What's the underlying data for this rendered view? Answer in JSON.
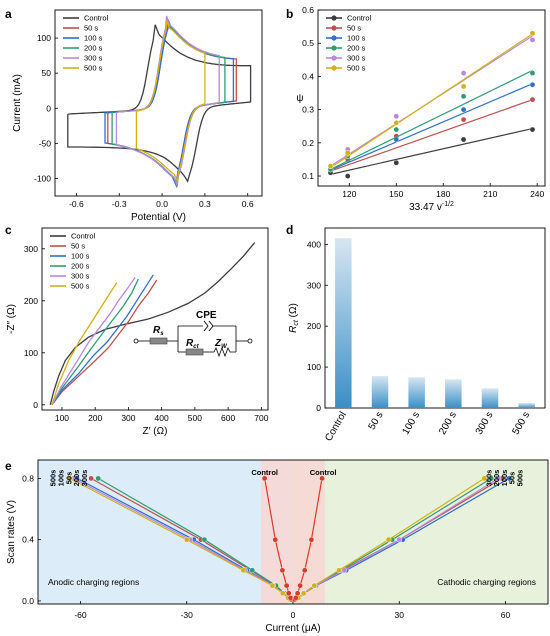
{
  "series_names": [
    "Control",
    "50 s",
    "100 s",
    "200 s",
    "300 s",
    "500 s"
  ],
  "series_short": [
    "Control",
    "50s",
    "100s",
    "200s",
    "300s",
    "500s"
  ],
  "colors": [
    "#3d3d3d",
    "#c0504d",
    "#2e6fcf",
    "#2e9e72",
    "#b987e0",
    "#d4b017"
  ],
  "chart_data": [
    {
      "panel": "a",
      "type": "line",
      "xlabel": "Potential (V)",
      "ylabel": "Current (mA)",
      "xlim": [
        -0.75,
        0.7
      ],
      "ylim": [
        -125,
        140
      ],
      "xticks": [
        -0.6,
        -0.3,
        0.0,
        0.3,
        0.6
      ],
      "xtick_labels": [
        "-0.6",
        "-0.3",
        "0.0",
        "0.3",
        "0.6"
      ],
      "yticks": [
        -100,
        -50,
        0,
        50,
        100
      ],
      "series": [
        {
          "name": "Control",
          "ox": -0.05,
          "rx": 0.19,
          "oy": 120,
          "ry": -108,
          "lo": -0.66,
          "hi": 0.62,
          "ylo": -55,
          "yhi": 45
        },
        {
          "name": "50 s",
          "ox": 0.04,
          "rx": 0.1,
          "oy": 127,
          "ry": -110,
          "lo": -0.38,
          "hi": 0.52,
          "ylo": -42,
          "yhi": 52
        },
        {
          "name": "100 s",
          "ox": 0.04,
          "rx": 0.1,
          "oy": 128,
          "ry": -110,
          "lo": -0.4,
          "hi": 0.5,
          "ylo": -44,
          "yhi": 50
        },
        {
          "name": "200 s",
          "ox": 0.03,
          "rx": 0.11,
          "oy": 130,
          "ry": -111,
          "lo": -0.35,
          "hi": 0.44,
          "ylo": -40,
          "yhi": 44
        },
        {
          "name": "300 s",
          "ox": 0.03,
          "rx": 0.11,
          "oy": 133,
          "ry": -112,
          "lo": -0.32,
          "hi": 0.4,
          "ylo": -37,
          "yhi": 40
        },
        {
          "name": "500 s",
          "ox": 0.03,
          "rx": 0.11,
          "oy": 128,
          "ry": -106,
          "lo": -0.18,
          "hi": 0.3,
          "ylo": -28,
          "yhi": 33
        }
      ]
    },
    {
      "panel": "b",
      "type": "scatter",
      "xlabel": "33.47 v",
      "xlabel_sup": "-1/2",
      "ylabel": "ψ",
      "xlim": [
        100,
        245
      ],
      "ylim": [
        0.07,
        0.6
      ],
      "xticks": [
        120,
        150,
        180,
        210,
        240
      ],
      "yticks": [
        0.1,
        0.2,
        0.3,
        0.4,
        0.5,
        0.6
      ],
      "x": [
        108,
        119,
        150,
        193,
        237
      ],
      "series": [
        {
          "name": "Control",
          "values": [
            0.11,
            0.1,
            0.14,
            0.21,
            0.24
          ],
          "fit": [
            0.105,
            0.243
          ]
        },
        {
          "name": "50 s",
          "values": [
            0.12,
            0.15,
            0.22,
            0.27,
            0.33
          ],
          "fit": [
            0.115,
            0.33
          ]
        },
        {
          "name": "100 s",
          "values": [
            0.12,
            0.16,
            0.21,
            0.3,
            0.375
          ],
          "fit": [
            0.118,
            0.378
          ]
        },
        {
          "name": "200 s",
          "values": [
            0.12,
            0.16,
            0.24,
            0.34,
            0.41
          ],
          "fit": [
            0.12,
            0.418
          ]
        },
        {
          "name": "300 s",
          "values": [
            0.13,
            0.18,
            0.28,
            0.41,
            0.51
          ],
          "fit": [
            0.13,
            0.522
          ]
        },
        {
          "name": "500 s",
          "values": [
            0.13,
            0.17,
            0.26,
            0.37,
            0.53
          ],
          "fit": [
            0.125,
            0.528
          ]
        }
      ]
    },
    {
      "panel": "c",
      "type": "line",
      "xlabel": "Z′ (Ω)",
      "ylabel": "-Z″ (Ω)",
      "xlim": [
        40,
        720
      ],
      "ylim": [
        -10,
        340
      ],
      "xticks": [
        100,
        200,
        300,
        400,
        500,
        600,
        700
      ],
      "yticks": [
        0,
        100,
        200,
        300
      ],
      "series": [
        {
          "name": "Control",
          "x": [
            65,
            75,
            90,
            110,
            140,
            180,
            230,
            290,
            360,
            420,
            480,
            530,
            570,
            610,
            645,
            680
          ],
          "y": [
            0,
            25,
            55,
            85,
            110,
            130,
            145,
            155,
            165,
            178,
            195,
            215,
            237,
            262,
            285,
            312
          ]
        },
        {
          "name": "50 s",
          "x": [
            70,
            100,
            150,
            200,
            240,
            270,
            300,
            330,
            360,
            385
          ],
          "y": [
            0,
            25,
            55,
            85,
            110,
            135,
            160,
            190,
            215,
            240
          ]
        },
        {
          "name": "100 s",
          "x": [
            70,
            100,
            150,
            195,
            235,
            265,
            295,
            325,
            350,
            375
          ],
          "y": [
            0,
            28,
            60,
            95,
            120,
            145,
            170,
            200,
            225,
            250
          ]
        },
        {
          "name": "200 s",
          "x": [
            70,
            100,
            145,
            190,
            225,
            255,
            285,
            310,
            330
          ],
          "y": [
            0,
            32,
            70,
            110,
            140,
            165,
            190,
            215,
            242
          ]
        },
        {
          "name": "300 s",
          "x": [
            70,
            98,
            140,
            180,
            215,
            245,
            270,
            295,
            320
          ],
          "y": [
            0,
            35,
            78,
            120,
            150,
            175,
            200,
            222,
            245
          ]
        },
        {
          "name": "500 s",
          "x": [
            70,
            90,
            120,
            155,
            190,
            220,
            245,
            265
          ],
          "y": [
            0,
            40,
            85,
            125,
            160,
            190,
            215,
            235
          ]
        }
      ],
      "circuit_labels": {
        "cpe": "CPE",
        "rs": "R",
        "rs_sub": "s",
        "rct": "R",
        "rct_sub": "ct",
        "zw": "Z",
        "zw_sub": "W"
      }
    },
    {
      "panel": "d",
      "type": "bar",
      "ylabel": "R",
      "ylabel_sub": "ct",
      "ylabel_unit": " (Ω)",
      "categories": [
        "Control",
        "50 s",
        "100 s",
        "200 s",
        "300 s",
        "500 s"
      ],
      "values": [
        415,
        78,
        75,
        70,
        48,
        12
      ],
      "ylim": [
        0,
        440
      ],
      "yticks": [
        0,
        100,
        200,
        300,
        400
      ]
    },
    {
      "panel": "e",
      "type": "scatter",
      "xlabel": "Current (μA)",
      "ylabel": "Scan rates (V)",
      "xlim": [
        -72,
        72
      ],
      "ylim": [
        -0.02,
        0.92
      ],
      "xticks": [
        -60,
        -30,
        0,
        30,
        60
      ],
      "yticks": [
        0.0,
        0.4,
        0.8
      ],
      "ytick_labels": [
        "0.0",
        "0.4",
        "0.8"
      ],
      "y": [
        0.01,
        0.02,
        0.05,
        0.1,
        0.2,
        0.4,
        0.8
      ],
      "region_left": "Anodic charging regions",
      "region_right": "Cathodic charging regions",
      "series": [
        {
          "name": "Control",
          "anodic": [
            -0.5,
            -0.7,
            -1.2,
            -1.8,
            -3.0,
            -5.0,
            -8.0
          ],
          "cathodic": [
            0.5,
            0.8,
            1.3,
            2.0,
            3.3,
            5.2,
            8.2
          ]
        },
        {
          "name": "50 s",
          "anodic": [
            -0.8,
            -1.2,
            -2.5,
            -5,
            -12,
            -26,
            -57
          ],
          "cathodic": [
            1.0,
            1.5,
            3.0,
            6,
            14,
            30,
            59
          ]
        },
        {
          "name": "100 s",
          "anodic": [
            -0.9,
            -1.3,
            -2.7,
            -5.5,
            -13,
            -28,
            -61
          ],
          "cathodic": [
            1.1,
            1.6,
            3.2,
            6.5,
            15,
            31,
            61
          ]
        },
        {
          "name": "200 s",
          "anodic": [
            -0.8,
            -1.2,
            -2.4,
            -4.8,
            -11.5,
            -25,
            -55
          ],
          "cathodic": [
            1.0,
            1.5,
            3.0,
            6,
            13.5,
            28,
            56
          ]
        },
        {
          "name": "300 s",
          "anodic": [
            -0.9,
            -1.3,
            -2.8,
            -5.6,
            -13.5,
            -29,
            -62
          ],
          "cathodic": [
            1.1,
            1.6,
            3.1,
            6.2,
            14.5,
            30,
            58
          ]
        },
        {
          "name": "500 s",
          "anodic": [
            -0.9,
            -1.4,
            -2.9,
            -5.8,
            -14,
            -30,
            -63
          ],
          "cathodic": [
            1.0,
            1.5,
            3.0,
            6,
            13,
            27,
            54
          ]
        }
      ]
    }
  ]
}
